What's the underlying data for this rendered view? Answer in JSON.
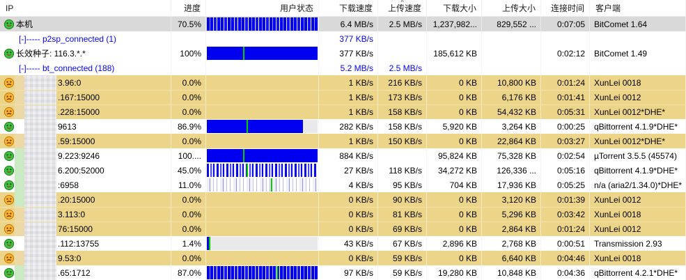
{
  "accent_colors": {
    "row_highlight_yellow": "#ecd489",
    "row_selected_gray": "#d9d9d9",
    "bar_blue": "#0000f0",
    "bar_marker_green": "#00cf00",
    "link_blue": "#0000ff"
  },
  "columns": [
    {
      "key": "ip",
      "label": "IP",
      "align": "left",
      "sorted": false
    },
    {
      "key": "progress",
      "label": "进度",
      "align": "right",
      "sorted": false
    },
    {
      "key": "status",
      "label": "用户状态",
      "align": "right",
      "sorted": false
    },
    {
      "key": "dl_speed",
      "label": "下载速度",
      "align": "right",
      "sorted": false
    },
    {
      "key": "ul_speed",
      "label": "上传速度",
      "align": "right",
      "sorted": true
    },
    {
      "key": "dl_size",
      "label": "下载大小",
      "align": "right",
      "sorted": false
    },
    {
      "key": "ul_size",
      "label": "上传大小",
      "align": "right",
      "sorted": false
    },
    {
      "key": "time",
      "label": "连接时间",
      "align": "right",
      "sorted": false
    },
    {
      "key": "client",
      "label": "客户端",
      "align": "left",
      "sorted": false
    }
  ],
  "rows": [
    {
      "type": "local",
      "icon": "smiley-green",
      "redacted": false,
      "strip": "none",
      "ip": "本机",
      "progress": "70.5%",
      "bar": {
        "style": "stripes-dense",
        "pct": 100,
        "marker": null
      },
      "dl_speed": "6.4 MB/s",
      "ul_speed": "2.5 MB/s",
      "dl_size": "1,237,982...",
      "ul_size": "829,552 ...",
      "time": "0:07:05",
      "client": "BitComet 1.64",
      "highlight": "selected",
      "blue": false
    },
    {
      "type": "group",
      "icon": null,
      "redacted": false,
      "strip": "none",
      "ip": "[-]----- p2sp_connected (1)",
      "progress": "",
      "bar": {
        "style": "none",
        "pct": 0,
        "marker": null
      },
      "dl_speed": "377 KB/s",
      "ul_speed": "",
      "dl_size": "",
      "ul_size": "",
      "time": "",
      "client": "",
      "highlight": null,
      "blue": true
    },
    {
      "type": "peer",
      "icon": "smiley-green",
      "redacted": false,
      "strip": "none",
      "ip": "长效种子: 116.3.*.*",
      "progress": "100%",
      "bar": {
        "style": "solid",
        "pct": 100,
        "marker": 33
      },
      "dl_speed": "377 KB/s",
      "ul_speed": "",
      "dl_size": "185,612 KB",
      "ul_size": "",
      "time": "0:02:12",
      "client": "BitComet 1.49",
      "highlight": null,
      "blue": false
    },
    {
      "type": "group",
      "icon": null,
      "redacted": false,
      "strip": "none",
      "ip": "[-]----- bt_connected (188)",
      "progress": "",
      "bar": {
        "style": "none",
        "pct": 0,
        "marker": null
      },
      "dl_speed": "5.2 MB/s",
      "ul_speed": "2.5 MB/s",
      "dl_size": "",
      "ul_size": "",
      "time": "",
      "client": "",
      "highlight": null,
      "blue": true
    },
    {
      "type": "peer",
      "icon": "frown-yellow",
      "redacted": true,
      "strip": "tan",
      "ip": "3.96:0",
      "progress": "0.0%",
      "bar": {
        "style": "none",
        "pct": 0,
        "marker": null
      },
      "dl_speed": "1 KB/s",
      "ul_speed": "216 KB/s",
      "dl_size": "0 KB",
      "ul_size": "10,800 KB",
      "time": "0:01:24",
      "client": "XunLei 0018",
      "highlight": "yellow",
      "blue": false
    },
    {
      "type": "peer",
      "icon": "frown-yellow",
      "redacted": true,
      "strip": "tan",
      "ip": ".167:15000",
      "progress": "0.0%",
      "bar": {
        "style": "none",
        "pct": 0,
        "marker": null
      },
      "dl_speed": "1 KB/s",
      "ul_speed": "173 KB/s",
      "dl_size": "0 KB",
      "ul_size": "6,176 KB",
      "time": "0:01:41",
      "client": "XunLei 0012",
      "highlight": "yellow",
      "blue": false
    },
    {
      "type": "peer",
      "icon": "frown-yellow",
      "redacted": true,
      "strip": "tan",
      "ip": ".228:15000",
      "progress": "0.0%",
      "bar": {
        "style": "none",
        "pct": 0,
        "marker": null
      },
      "dl_speed": "1 KB/s",
      "ul_speed": "158 KB/s",
      "dl_size": "0 KB",
      "ul_size": "54,432 KB",
      "time": "0:05:31",
      "client": "XunLei 0012*DHE*",
      "highlight": "yellow",
      "blue": false
    },
    {
      "type": "peer",
      "icon": "smiley-green",
      "redacted": true,
      "strip": "none",
      "ip": "9613",
      "progress": "86.9%",
      "bar": {
        "style": "solid",
        "pct": 87,
        "marker": 36
      },
      "dl_speed": "282 KB/s",
      "ul_speed": "158 KB/s",
      "dl_size": "5,920 KB",
      "ul_size": "3,264 KB",
      "time": "0:00:25",
      "client": "qBittorrent 4.1.9*DHE*",
      "highlight": null,
      "blue": false
    },
    {
      "type": "peer",
      "icon": "frown-yellow",
      "redacted": true,
      "strip": "tan",
      "ip": ".59:15000",
      "progress": "0.0%",
      "bar": {
        "style": "none",
        "pct": 0,
        "marker": null
      },
      "dl_speed": "1 KB/s",
      "ul_speed": "150 KB/s",
      "dl_size": "0 KB",
      "ul_size": "22,864 KB",
      "time": "0:03:27",
      "client": "XunLei 0012*DHE*",
      "highlight": "yellow",
      "blue": false
    },
    {
      "type": "peer",
      "icon": "smiley-green",
      "redacted": true,
      "strip": "green",
      "ip": "9.223:9246",
      "progress": "100....",
      "bar": {
        "style": "solid",
        "pct": 100,
        "marker": 33
      },
      "dl_speed": "884 KB/s",
      "ul_speed": "",
      "dl_size": "95,824 KB",
      "ul_size": "75,328 KB",
      "time": "0:02:54",
      "client": "µTorrent 3.5.5 (45574)",
      "highlight": null,
      "blue": false
    },
    {
      "type": "peer",
      "icon": "smiley-green",
      "redacted": true,
      "strip": "green",
      "ip": "6.200:52000",
      "progress": "45.0%",
      "bar": {
        "style": "stripes-med",
        "pct": 100,
        "marker": 36
      },
      "dl_speed": "27 KB/s",
      "ul_speed": "118 KB/s",
      "dl_size": "34,272 KB",
      "ul_size": "126,336 ...",
      "time": "0:05:16",
      "client": "qBittorrent 4.1.9*DHE*",
      "highlight": null,
      "blue": false
    },
    {
      "type": "peer",
      "icon": "smiley-green",
      "redacted": true,
      "strip": "green",
      "ip": ":6958",
      "progress": "11.0%",
      "bar": {
        "style": "stripes-light",
        "pct": 100,
        "marker": 58
      },
      "dl_speed": "4 KB/s",
      "ul_speed": "95 KB/s",
      "dl_size": "704 KB",
      "ul_size": "17,936 KB",
      "time": "0:05:25",
      "client": "n/a (aria2/1.34.0)*DHE*",
      "highlight": null,
      "blue": false
    },
    {
      "type": "peer",
      "icon": "frown-yellow",
      "redacted": true,
      "strip": "green",
      "ip": ".20:15000",
      "progress": "0.0%",
      "bar": {
        "style": "none",
        "pct": 0,
        "marker": null
      },
      "dl_speed": "0 KB/s",
      "ul_speed": "90 KB/s",
      "dl_size": "0 KB",
      "ul_size": "3,120 KB",
      "time": "0:01:39",
      "client": "XunLei 0012",
      "highlight": "yellow",
      "blue": false
    },
    {
      "type": "peer",
      "icon": "frown-yellow",
      "redacted": true,
      "strip": "tan",
      "ip": "3.113:0",
      "progress": "0.0%",
      "bar": {
        "style": "none",
        "pct": 0,
        "marker": null
      },
      "dl_speed": "0 KB/s",
      "ul_speed": "81 KB/s",
      "dl_size": "0 KB",
      "ul_size": "5,296 KB",
      "time": "0:03:42",
      "client": "XunLei 0018",
      "highlight": "yellow",
      "blue": false
    },
    {
      "type": "peer",
      "icon": "frown-yellow",
      "redacted": true,
      "strip": "tan",
      "ip": "76:15000",
      "progress": "0.0%",
      "bar": {
        "style": "none",
        "pct": 0,
        "marker": null
      },
      "dl_speed": "0 KB/s",
      "ul_speed": "69 KB/s",
      "dl_size": "0 KB",
      "ul_size": "2,864 KB",
      "time": "0:01:24",
      "client": "XunLei 0012",
      "highlight": "yellow",
      "blue": false
    },
    {
      "type": "peer",
      "icon": "smiley-green",
      "redacted": true,
      "strip": "none",
      "ip": ".112:13755",
      "progress": "1.4%",
      "bar": {
        "style": "solid",
        "pct": 2,
        "marker": 2
      },
      "dl_speed": "43 KB/s",
      "ul_speed": "67 KB/s",
      "dl_size": "2,896 KB",
      "ul_size": "2,768 KB",
      "time": "0:00:51",
      "client": "Transmission 2.93",
      "highlight": null,
      "blue": false
    },
    {
      "type": "peer",
      "icon": "frown-yellow",
      "redacted": true,
      "strip": "tan",
      "ip": "9.53:0",
      "progress": "0.0%",
      "bar": {
        "style": "none",
        "pct": 0,
        "marker": null
      },
      "dl_speed": "0 KB/s",
      "ul_speed": "59 KB/s",
      "dl_size": "0 KB",
      "ul_size": "6,640 KB",
      "time": "0:04:46",
      "client": "XunLei 0018",
      "highlight": "yellow",
      "blue": false
    },
    {
      "type": "peer",
      "icon": "smiley-green",
      "redacted": true,
      "strip": "green",
      "ip": ".65:1712",
      "progress": "87.0%",
      "bar": {
        "style": "stripes-dense",
        "pct": 100,
        "marker": 63
      },
      "dl_speed": "97 KB/s",
      "ul_speed": "59 KB/s",
      "dl_size": "19,280 KB",
      "ul_size": "10,848 KB",
      "time": "0:04:36",
      "client": "qBittorrent 4.2.1*DHE*",
      "highlight": null,
      "blue": false
    }
  ]
}
